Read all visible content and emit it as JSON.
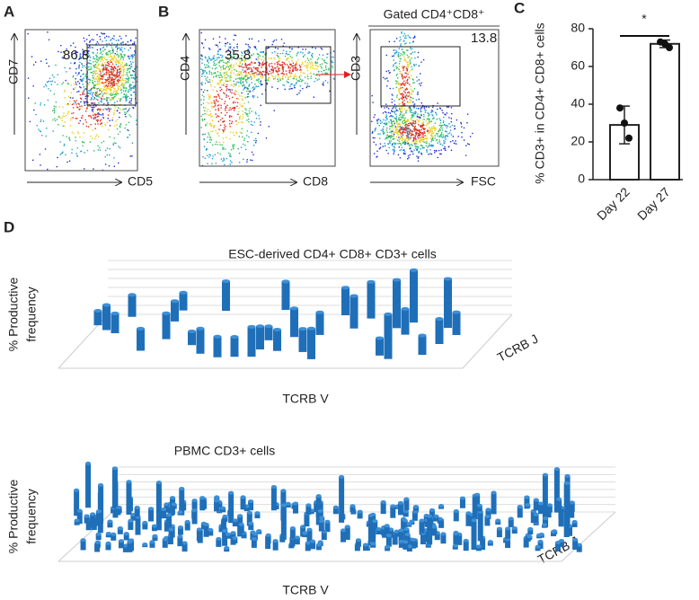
{
  "panels": {
    "A": {
      "label": "A",
      "gate_value": "86.8",
      "y_axis": "CD7",
      "x_axis": "CD5"
    },
    "B": {
      "label": "B",
      "gate_value": "35.8",
      "y_axis": "CD4",
      "x_axis": "CD8",
      "gated_title": "Gated CD4⁺CD8⁺",
      "gated_value": "13.8",
      "gated_y_axis": "CD3",
      "gated_x_axis": "FSC"
    },
    "C": {
      "label": "C"
    },
    "D": {
      "label": "D",
      "top": {
        "title": "ESC-derived CD4+ CD8+ CD3+ cells",
        "y_axis_1": "% Productive",
        "y_axis_2": "frequency",
        "x_axis": "TCRB V",
        "z_axis": "TCRB J"
      },
      "bottom": {
        "title": "PBMC CD3+ cells",
        "y_axis_1": "% Productive",
        "y_axis_2": "frequency",
        "x_axis": "TCRB V",
        "z_axis": "TCRB J"
      }
    }
  },
  "chart_data": {
    "type": "bar",
    "ylabel": "% CD3+ in CD4+ CD8+ cells",
    "categories": [
      "Day 22",
      "Day 27"
    ],
    "values": [
      29,
      72
    ],
    "errors": [
      10,
      2
    ],
    "points": [
      [
        38,
        30,
        22
      ],
      [
        73,
        72,
        70
      ]
    ],
    "ylim": [
      0,
      80
    ],
    "yticks": [
      0,
      20,
      40,
      60,
      80
    ],
    "annotation": "*",
    "color": "#ffffff"
  }
}
